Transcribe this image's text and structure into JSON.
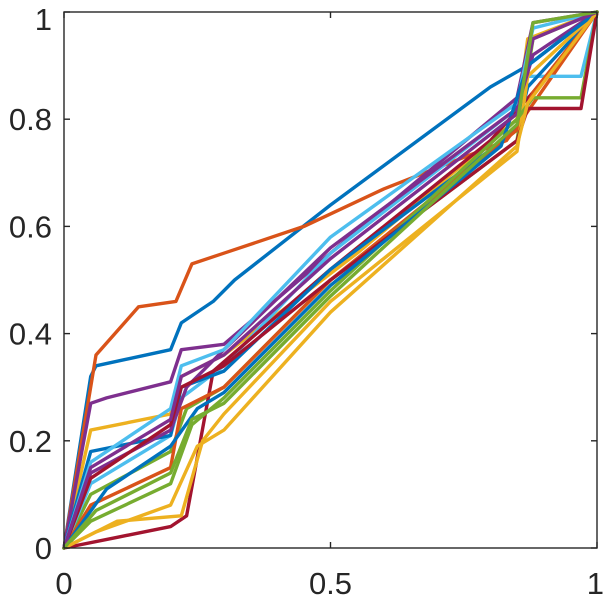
{
  "chart_data": {
    "type": "line",
    "title": "",
    "xlabel": "",
    "ylabel": "",
    "xlim": [
      0,
      1
    ],
    "ylim": [
      0,
      1
    ],
    "grid": false,
    "legend": "none",
    "x_ticks": [
      0,
      0.5,
      1
    ],
    "y_ticks": [
      0,
      0.2,
      0.4,
      0.6,
      0.8,
      1
    ],
    "x_tick_labels": [
      "0",
      "0.5",
      "1"
    ],
    "y_tick_labels": [
      "0",
      "0.2",
      "0.4",
      "0.6",
      "0.8",
      "1"
    ],
    "series": [
      {
        "color": "#0072BD",
        "points": [
          [
            0,
            0
          ],
          [
            0.05,
            0.32
          ],
          [
            0.06,
            0.34
          ],
          [
            0.2,
            0.37
          ],
          [
            0.22,
            0.42
          ],
          [
            0.28,
            0.46
          ],
          [
            0.32,
            0.5
          ],
          [
            0.5,
            0.64
          ],
          [
            0.8,
            0.86
          ],
          [
            0.87,
            0.9
          ],
          [
            1,
            1
          ]
        ]
      },
      {
        "color": "#D95319",
        "points": [
          [
            0,
            0
          ],
          [
            0.06,
            0.36
          ],
          [
            0.14,
            0.45
          ],
          [
            0.21,
            0.46
          ],
          [
            0.24,
            0.53
          ],
          [
            0.3,
            0.55
          ],
          [
            0.45,
            0.6
          ],
          [
            0.6,
            0.67
          ],
          [
            0.83,
            0.76
          ],
          [
            0.86,
            0.8
          ],
          [
            1,
            1
          ]
        ]
      },
      {
        "color": "#EDB120",
        "points": [
          [
            0,
            0
          ],
          [
            0.05,
            0.22
          ],
          [
            0.2,
            0.25
          ],
          [
            0.22,
            0.32
          ],
          [
            0.3,
            0.36
          ],
          [
            0.55,
            0.55
          ],
          [
            0.85,
            0.8
          ],
          [
            0.87,
            0.95
          ],
          [
            1,
            1
          ]
        ]
      },
      {
        "color": "#7E2F8E",
        "points": [
          [
            0,
            0
          ],
          [
            0.05,
            0.27
          ],
          [
            0.08,
            0.28
          ],
          [
            0.2,
            0.31
          ],
          [
            0.22,
            0.37
          ],
          [
            0.3,
            0.38
          ],
          [
            0.5,
            0.55
          ],
          [
            0.85,
            0.84
          ],
          [
            0.88,
            0.98
          ],
          [
            1,
            1
          ]
        ]
      },
      {
        "color": "#77AC30",
        "points": [
          [
            0,
            0
          ],
          [
            0.05,
            0.1
          ],
          [
            0.2,
            0.18
          ],
          [
            0.23,
            0.26
          ],
          [
            0.3,
            0.3
          ],
          [
            0.5,
            0.5
          ],
          [
            0.85,
            0.76
          ],
          [
            0.88,
            0.95
          ],
          [
            1,
            1
          ]
        ]
      },
      {
        "color": "#4DBEEE",
        "points": [
          [
            0,
            0
          ],
          [
            0.05,
            0.12
          ],
          [
            0.2,
            0.21
          ],
          [
            0.22,
            0.28
          ],
          [
            0.3,
            0.34
          ],
          [
            0.5,
            0.55
          ],
          [
            0.85,
            0.82
          ],
          [
            0.87,
            0.88
          ],
          [
            0.97,
            0.88
          ],
          [
            1,
            1
          ]
        ]
      },
      {
        "color": "#A2142F",
        "points": [
          [
            0,
            0
          ],
          [
            0.1,
            0.02
          ],
          [
            0.2,
            0.04
          ],
          [
            0.23,
            0.06
          ],
          [
            0.28,
            0.33
          ],
          [
            0.5,
            0.52
          ],
          [
            0.8,
            0.76
          ],
          [
            0.88,
            0.85
          ],
          [
            1,
            1
          ]
        ]
      },
      {
        "color": "#0072BD",
        "points": [
          [
            0,
            0
          ],
          [
            0.05,
            0.18
          ],
          [
            0.2,
            0.21
          ],
          [
            0.22,
            0.3
          ],
          [
            0.3,
            0.33
          ],
          [
            0.5,
            0.52
          ],
          [
            0.85,
            0.78
          ],
          [
            0.87,
            0.86
          ],
          [
            1,
            1
          ]
        ]
      },
      {
        "color": "#D95319",
        "points": [
          [
            0,
            0
          ],
          [
            0.05,
            0.08
          ],
          [
            0.2,
            0.15
          ],
          [
            0.22,
            0.26
          ],
          [
            0.3,
            0.3
          ],
          [
            0.5,
            0.5
          ],
          [
            0.85,
            0.78
          ],
          [
            0.88,
            0.85
          ],
          [
            1,
            1
          ]
        ]
      },
      {
        "color": "#EDB120",
        "points": [
          [
            0,
            0
          ],
          [
            0.1,
            0.05
          ],
          [
            0.22,
            0.06
          ],
          [
            0.26,
            0.2
          ],
          [
            0.3,
            0.25
          ],
          [
            0.5,
            0.46
          ],
          [
            0.85,
            0.74
          ],
          [
            0.87,
            0.88
          ],
          [
            1,
            1
          ]
        ]
      },
      {
        "color": "#7E2F8E",
        "points": [
          [
            0,
            0
          ],
          [
            0.05,
            0.14
          ],
          [
            0.2,
            0.22
          ],
          [
            0.23,
            0.3
          ],
          [
            0.3,
            0.37
          ],
          [
            0.5,
            0.56
          ],
          [
            0.85,
            0.82
          ],
          [
            0.88,
            0.92
          ],
          [
            1,
            1
          ]
        ]
      },
      {
        "color": "#77AC30",
        "points": [
          [
            0,
            0
          ],
          [
            0.05,
            0.05
          ],
          [
            0.2,
            0.12
          ],
          [
            0.24,
            0.23
          ],
          [
            0.3,
            0.28
          ],
          [
            0.5,
            0.48
          ],
          [
            0.85,
            0.8
          ],
          [
            0.88,
            0.84
          ],
          [
            0.97,
            0.84
          ],
          [
            1,
            1
          ]
        ]
      },
      {
        "color": "#4DBEEE",
        "points": [
          [
            0,
            0
          ],
          [
            0.05,
            0.16
          ],
          [
            0.2,
            0.26
          ],
          [
            0.22,
            0.34
          ],
          [
            0.3,
            0.37
          ],
          [
            0.5,
            0.58
          ],
          [
            0.85,
            0.83
          ],
          [
            0.88,
            0.97
          ],
          [
            1,
            1
          ]
        ]
      },
      {
        "color": "#A2142F",
        "points": [
          [
            0,
            0
          ],
          [
            0.05,
            0.13
          ],
          [
            0.2,
            0.23
          ],
          [
            0.22,
            0.3
          ],
          [
            0.3,
            0.34
          ],
          [
            0.5,
            0.5
          ],
          [
            0.85,
            0.76
          ],
          [
            0.87,
            0.82
          ],
          [
            0.97,
            0.82
          ],
          [
            1,
            1
          ]
        ]
      },
      {
        "color": "#0072BD",
        "points": [
          [
            0,
            0
          ],
          [
            0.08,
            0.11
          ],
          [
            0.2,
            0.19
          ],
          [
            0.25,
            0.26
          ],
          [
            0.3,
            0.29
          ],
          [
            0.5,
            0.49
          ],
          [
            0.82,
            0.75
          ],
          [
            0.87,
            0.9
          ],
          [
            1,
            1
          ]
        ]
      },
      {
        "color": "#EDB120",
        "points": [
          [
            0,
            0
          ],
          [
            0.06,
            0.03
          ],
          [
            0.2,
            0.08
          ],
          [
            0.25,
            0.19
          ],
          [
            0.3,
            0.22
          ],
          [
            0.5,
            0.44
          ],
          [
            0.85,
            0.75
          ],
          [
            0.87,
            0.83
          ],
          [
            1,
            1
          ]
        ]
      },
      {
        "color": "#7E2F8E",
        "points": [
          [
            0,
            0
          ],
          [
            0.05,
            0.15
          ],
          [
            0.2,
            0.24
          ],
          [
            0.22,
            0.32
          ],
          [
            0.3,
            0.36
          ],
          [
            0.5,
            0.54
          ],
          [
            0.85,
            0.81
          ],
          [
            0.88,
            0.95
          ],
          [
            1,
            1
          ]
        ]
      },
      {
        "color": "#77AC30",
        "points": [
          [
            0,
            0
          ],
          [
            0.06,
            0.07
          ],
          [
            0.2,
            0.14
          ],
          [
            0.24,
            0.24
          ],
          [
            0.3,
            0.27
          ],
          [
            0.5,
            0.47
          ],
          [
            0.85,
            0.79
          ],
          [
            0.88,
            0.98
          ],
          [
            1,
            1
          ]
        ]
      }
    ]
  }
}
